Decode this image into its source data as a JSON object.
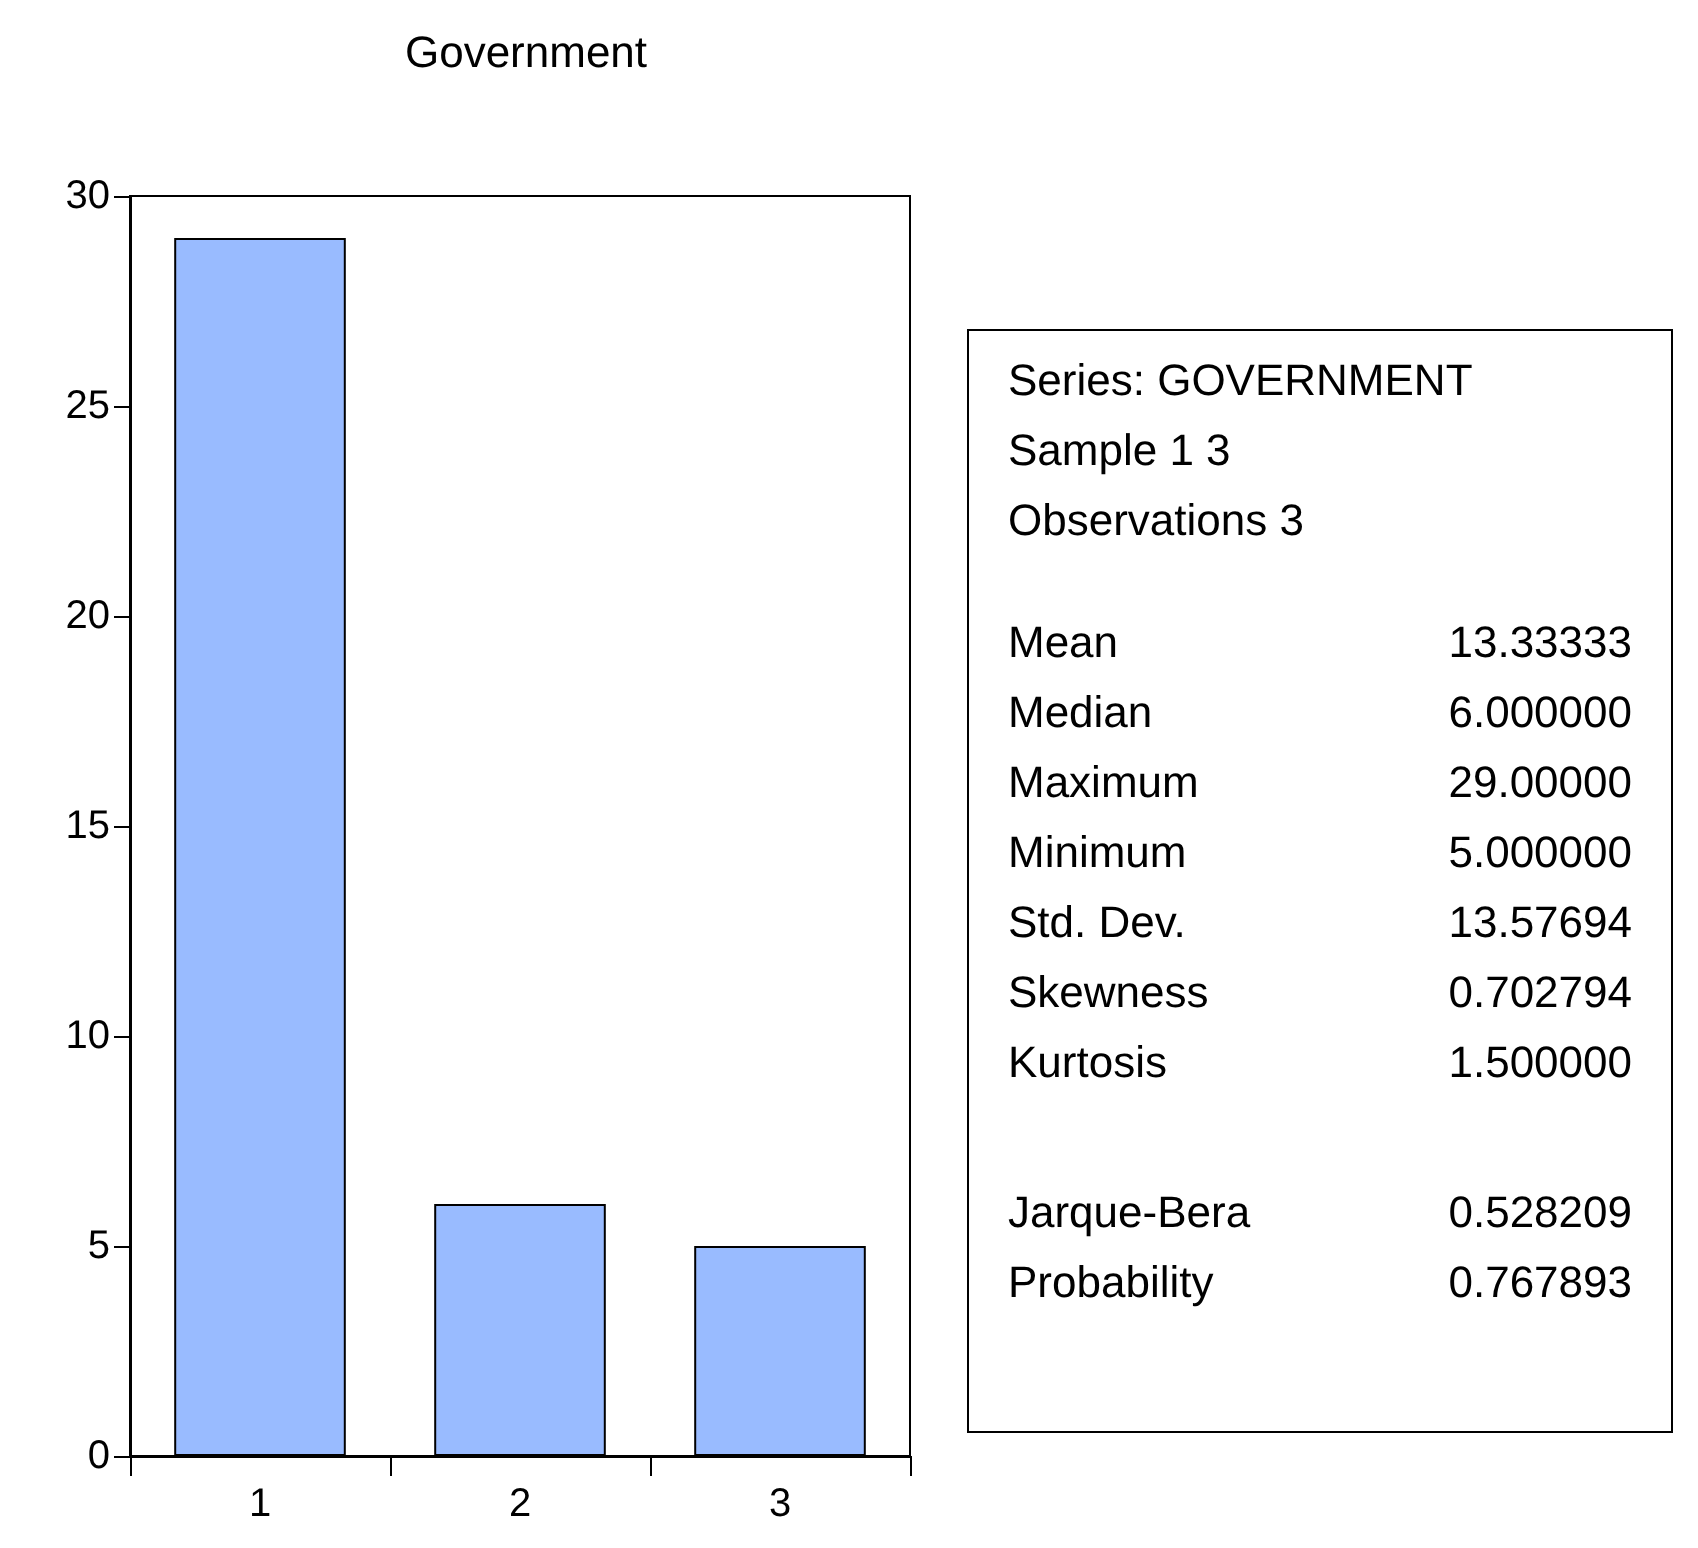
{
  "chart_data": {
    "type": "bar",
    "title": "Government",
    "categories": [
      "1",
      "2",
      "3"
    ],
    "values": [
      29,
      6,
      5
    ],
    "color": "#99bbff",
    "ylim": [
      0,
      30
    ],
    "yticks": [
      0,
      5,
      10,
      15,
      20,
      25,
      30
    ],
    "grid": false,
    "annotations": [
      "Series: GOVERNMENT",
      "Sample 1 3",
      "Observations 3",
      "Mean",
      "13.33333",
      "Median",
      "6.000000",
      "Maximum",
      "29.00000",
      "Minimum",
      "5.000000",
      "Std. Dev.",
      "13.57694",
      "Skewness",
      "0.702794",
      "Kurtosis",
      "1.500000",
      "Jarque-Bera",
      "0.528209",
      "Probability",
      "0.767893"
    ]
  }
}
